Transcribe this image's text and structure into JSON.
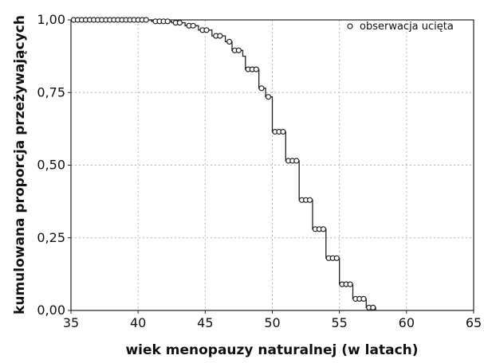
{
  "chart_data": {
    "type": "line",
    "subtype": "kaplan-meier survival curve",
    "xlabel": "wiek menopauzy naturalnej (w latach)",
    "ylabel": "kumulowana proporcja przeżywających",
    "xlim": [
      35,
      65
    ],
    "ylim": [
      0,
      1
    ],
    "xticks": [
      35,
      40,
      45,
      50,
      55,
      60,
      65
    ],
    "yticks": [
      0,
      0.25,
      0.5,
      0.75,
      1
    ],
    "ytick_labels": [
      "0,00",
      "0,25",
      "0,50",
      "0,75",
      "1,00"
    ],
    "grid": true,
    "legend": {
      "position": "top-right",
      "entries": [
        "obserwacja ucięta"
      ]
    },
    "series": [
      {
        "step_points": [
          [
            35,
            1.0
          ],
          [
            41,
            1.0
          ],
          [
            41,
            0.995
          ],
          [
            42.5,
            0.995
          ],
          [
            42.5,
            0.99
          ],
          [
            43.5,
            0.99
          ],
          [
            43.5,
            0.98
          ],
          [
            44.5,
            0.98
          ],
          [
            44.5,
            0.965
          ],
          [
            45.5,
            0.965
          ],
          [
            45.5,
            0.945
          ],
          [
            46.5,
            0.945
          ],
          [
            46.5,
            0.925
          ],
          [
            47,
            0.925
          ],
          [
            47,
            0.895
          ],
          [
            47.8,
            0.895
          ],
          [
            47.8,
            0.875
          ],
          [
            48,
            0.875
          ],
          [
            48,
            0.83
          ],
          [
            49,
            0.83
          ],
          [
            49,
            0.765
          ],
          [
            49.5,
            0.765
          ],
          [
            49.5,
            0.735
          ],
          [
            50,
            0.735
          ],
          [
            50,
            0.615
          ],
          [
            51,
            0.615
          ],
          [
            51,
            0.515
          ],
          [
            52,
            0.515
          ],
          [
            52,
            0.38
          ],
          [
            53,
            0.38
          ],
          [
            53,
            0.28
          ],
          [
            54,
            0.28
          ],
          [
            54,
            0.18
          ],
          [
            55,
            0.18
          ],
          [
            55,
            0.09
          ],
          [
            56,
            0.09
          ],
          [
            56,
            0.04
          ],
          [
            57,
            0.04
          ],
          [
            57,
            0.01
          ],
          [
            57.7,
            0.01
          ],
          [
            57.7,
            0.0
          ]
        ],
        "censored": [
          [
            35.2,
            1.0
          ],
          [
            35.5,
            1.0
          ],
          [
            35.8,
            1.0
          ],
          [
            36.1,
            1.0
          ],
          [
            36.4,
            1.0
          ],
          [
            36.7,
            1.0
          ],
          [
            37.0,
            1.0
          ],
          [
            37.3,
            1.0
          ],
          [
            37.6,
            1.0
          ],
          [
            37.9,
            1.0
          ],
          [
            38.2,
            1.0
          ],
          [
            38.5,
            1.0
          ],
          [
            38.8,
            1.0
          ],
          [
            39.1,
            1.0
          ],
          [
            39.4,
            1.0
          ],
          [
            39.7,
            1.0
          ],
          [
            40.0,
            1.0
          ],
          [
            40.3,
            1.0
          ],
          [
            40.6,
            1.0
          ],
          [
            41.3,
            0.995
          ],
          [
            41.6,
            0.995
          ],
          [
            41.9,
            0.995
          ],
          [
            42.2,
            0.995
          ],
          [
            42.8,
            0.99
          ],
          [
            43.1,
            0.99
          ],
          [
            43.8,
            0.98
          ],
          [
            44.1,
            0.98
          ],
          [
            44.8,
            0.965
          ],
          [
            45.1,
            0.965
          ],
          [
            45.8,
            0.945
          ],
          [
            46.1,
            0.945
          ],
          [
            46.8,
            0.925
          ],
          [
            47.2,
            0.895
          ],
          [
            47.5,
            0.895
          ],
          [
            48.2,
            0.83
          ],
          [
            48.5,
            0.83
          ],
          [
            48.8,
            0.83
          ],
          [
            49.2,
            0.765
          ],
          [
            49.7,
            0.735
          ],
          [
            50.2,
            0.615
          ],
          [
            50.5,
            0.615
          ],
          [
            50.8,
            0.615
          ],
          [
            51.2,
            0.515
          ],
          [
            51.5,
            0.515
          ],
          [
            51.8,
            0.515
          ],
          [
            52.2,
            0.38
          ],
          [
            52.5,
            0.38
          ],
          [
            52.8,
            0.38
          ],
          [
            53.2,
            0.28
          ],
          [
            53.5,
            0.28
          ],
          [
            53.8,
            0.28
          ],
          [
            54.2,
            0.18
          ],
          [
            54.5,
            0.18
          ],
          [
            54.8,
            0.18
          ],
          [
            55.2,
            0.09
          ],
          [
            55.5,
            0.09
          ],
          [
            55.8,
            0.09
          ],
          [
            56.2,
            0.04
          ],
          [
            56.5,
            0.04
          ],
          [
            56.8,
            0.04
          ],
          [
            57.2,
            0.01
          ],
          [
            57.5,
            0.01
          ]
        ]
      }
    ]
  }
}
